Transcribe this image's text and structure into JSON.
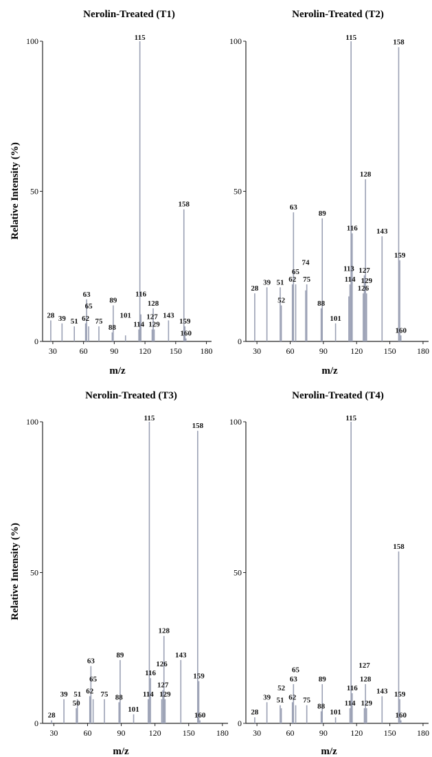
{
  "figure": {
    "ylabel": "Relative Intensity (%)",
    "xlabel": "m/z"
  },
  "colors": {
    "axis": "#222222",
    "peak": "#9aa0b4",
    "text": "#111111"
  },
  "chart_data": [
    {
      "type": "bar",
      "title": "Nerolin-Treated (T1)",
      "xlabel": "m/z",
      "ylabel": "Relative Intensity (%)",
      "xlim": [
        20,
        185
      ],
      "ylim": [
        0,
        100
      ],
      "xticks": [
        30,
        60,
        90,
        120,
        150,
        180
      ],
      "yticks": [
        0,
        50,
        100
      ],
      "peaks": [
        {
          "x": 28,
          "y": 7,
          "label": "28"
        },
        {
          "x": 39,
          "y": 6,
          "label": "39"
        },
        {
          "x": 51,
          "y": 5,
          "label": "51"
        },
        {
          "x": 62,
          "y": 6,
          "label": "62"
        },
        {
          "x": 63,
          "y": 14,
          "label": "63"
        },
        {
          "x": 65,
          "y": 5,
          "label": "65"
        },
        {
          "x": 75,
          "y": 5,
          "label": "75"
        },
        {
          "x": 88,
          "y": 3,
          "label": "88"
        },
        {
          "x": 89,
          "y": 12,
          "label": "89"
        },
        {
          "x": 101,
          "y": 2,
          "label": "101"
        },
        {
          "x": 114,
          "y": 4,
          "label": "114"
        },
        {
          "x": 115,
          "y": 100,
          "label": "115"
        },
        {
          "x": 116,
          "y": 9,
          "label": "116"
        },
        {
          "x": 127,
          "y": 4,
          "label": "127"
        },
        {
          "x": 128,
          "y": 11,
          "label": "128"
        },
        {
          "x": 129,
          "y": 4,
          "label": "129"
        },
        {
          "x": 143,
          "y": 7,
          "label": "143"
        },
        {
          "x": 158,
          "y": 44,
          "label": "158"
        },
        {
          "x": 159,
          "y": 5,
          "label": "159"
        },
        {
          "x": 160,
          "y": 1,
          "label": "160"
        }
      ]
    },
    {
      "type": "bar",
      "title": "Nerolin-Treated (T2)",
      "xlabel": "m/z",
      "ylabel": "",
      "xlim": [
        20,
        185
      ],
      "ylim": [
        0,
        100
      ],
      "xticks": [
        30,
        60,
        90,
        120,
        150,
        180
      ],
      "yticks": [
        0,
        50,
        100
      ],
      "peaks": [
        {
          "x": 28,
          "y": 16,
          "label": "28"
        },
        {
          "x": 39,
          "y": 18,
          "label": "39"
        },
        {
          "x": 51,
          "y": 18,
          "label": "51"
        },
        {
          "x": 52,
          "y": 12,
          "label": "52"
        },
        {
          "x": 62,
          "y": 19,
          "label": "62"
        },
        {
          "x": 63,
          "y": 43,
          "label": "63"
        },
        {
          "x": 65,
          "y": 19,
          "label": "65"
        },
        {
          "x": 74,
          "y": 17,
          "label": "74"
        },
        {
          "x": 75,
          "y": 19,
          "label": "75"
        },
        {
          "x": 88,
          "y": 11,
          "label": "88"
        },
        {
          "x": 89,
          "y": 41,
          "label": "89"
        },
        {
          "x": 101,
          "y": 6,
          "label": "101"
        },
        {
          "x": 113,
          "y": 15,
          "label": "113"
        },
        {
          "x": 114,
          "y": 19,
          "label": "114"
        },
        {
          "x": 115,
          "y": 100,
          "label": "115"
        },
        {
          "x": 116,
          "y": 36,
          "label": "116"
        },
        {
          "x": 126,
          "y": 16,
          "label": "126"
        },
        {
          "x": 127,
          "y": 22,
          "label": "127"
        },
        {
          "x": 128,
          "y": 54,
          "label": "128"
        },
        {
          "x": 129,
          "y": 16,
          "label": "129"
        },
        {
          "x": 143,
          "y": 35,
          "label": "143"
        },
        {
          "x": 158,
          "y": 98,
          "label": "158"
        },
        {
          "x": 159,
          "y": 27,
          "label": "159"
        },
        {
          "x": 160,
          "y": 2,
          "label": "160"
        }
      ]
    },
    {
      "type": "bar",
      "title": "Nerolin-Treated (T3)",
      "xlabel": "m/z",
      "ylabel": "Relative Intensity (%)",
      "xlim": [
        20,
        185
      ],
      "ylim": [
        0,
        100
      ],
      "xticks": [
        30,
        60,
        90,
        120,
        150,
        180
      ],
      "yticks": [
        0,
        50,
        100
      ],
      "peaks": [
        {
          "x": 28,
          "y": 1,
          "label": "28"
        },
        {
          "x": 39,
          "y": 8,
          "label": "39"
        },
        {
          "x": 50,
          "y": 5,
          "label": "50"
        },
        {
          "x": 51,
          "y": 8,
          "label": "51"
        },
        {
          "x": 62,
          "y": 9,
          "label": "62"
        },
        {
          "x": 63,
          "y": 19,
          "label": "63"
        },
        {
          "x": 65,
          "y": 8,
          "label": "65"
        },
        {
          "x": 75,
          "y": 8,
          "label": "75"
        },
        {
          "x": 88,
          "y": 7,
          "label": "88"
        },
        {
          "x": 89,
          "y": 21,
          "label": "89"
        },
        {
          "x": 101,
          "y": 3,
          "label": "101"
        },
        {
          "x": 114,
          "y": 8,
          "label": "114"
        },
        {
          "x": 115,
          "y": 100,
          "label": "115"
        },
        {
          "x": 116,
          "y": 15,
          "label": "116"
        },
        {
          "x": 126,
          "y": 8,
          "label": "126"
        },
        {
          "x": 127,
          "y": 11,
          "label": "127"
        },
        {
          "x": 128,
          "y": 29,
          "label": "128"
        },
        {
          "x": 129,
          "y": 8,
          "label": "129"
        },
        {
          "x": 143,
          "y": 21,
          "label": "143"
        },
        {
          "x": 158,
          "y": 97,
          "label": "158"
        },
        {
          "x": 159,
          "y": 14,
          "label": "159"
        },
        {
          "x": 160,
          "y": 1,
          "label": "160"
        }
      ]
    },
    {
      "type": "bar",
      "title": "Nerolin-Treated (T4)",
      "xlabel": "m/z",
      "ylabel": "",
      "xlim": [
        20,
        185
      ],
      "ylim": [
        0,
        100
      ],
      "xticks": [
        30,
        60,
        90,
        120,
        150,
        180
      ],
      "yticks": [
        0,
        50,
        100
      ],
      "peaks": [
        {
          "x": 28,
          "y": 2,
          "label": "28"
        },
        {
          "x": 39,
          "y": 7,
          "label": "39"
        },
        {
          "x": 51,
          "y": 6,
          "label": "51"
        },
        {
          "x": 52,
          "y": 5,
          "label": "52"
        },
        {
          "x": 62,
          "y": 7,
          "label": "62"
        },
        {
          "x": 63,
          "y": 13,
          "label": "63"
        },
        {
          "x": 65,
          "y": 6,
          "label": "65"
        },
        {
          "x": 75,
          "y": 6,
          "label": "75"
        },
        {
          "x": 88,
          "y": 4,
          "label": "88"
        },
        {
          "x": 89,
          "y": 13,
          "label": "89"
        },
        {
          "x": 101,
          "y": 2,
          "label": "101"
        },
        {
          "x": 114,
          "y": 5,
          "label": "114"
        },
        {
          "x": 115,
          "y": 100,
          "label": "115"
        },
        {
          "x": 116,
          "y": 10,
          "label": "116"
        },
        {
          "x": 127,
          "y": 5,
          "label": "127"
        },
        {
          "x": 128,
          "y": 13,
          "label": "128"
        },
        {
          "x": 129,
          "y": 5,
          "label": "129"
        },
        {
          "x": 143,
          "y": 9,
          "label": "143"
        },
        {
          "x": 158,
          "y": 57,
          "label": "158"
        },
        {
          "x": 159,
          "y": 8,
          "label": "159"
        },
        {
          "x": 160,
          "y": 1,
          "label": "160"
        }
      ]
    }
  ]
}
